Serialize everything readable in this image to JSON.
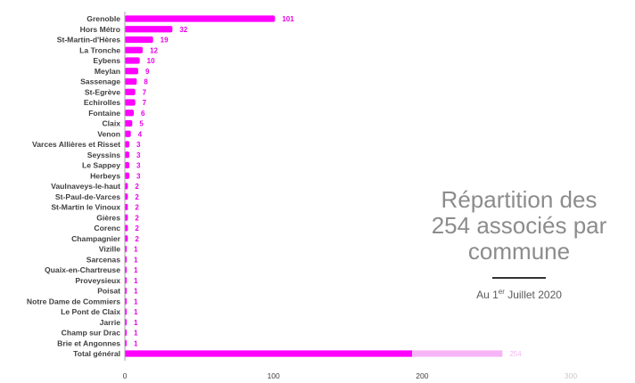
{
  "chart_data": {
    "type": "bar",
    "orientation": "horizontal",
    "categories": [
      "Grenoble",
      "Hors Métro",
      "St-Martin-d'Hères",
      "La Tronche",
      "Eybens",
      "Meylan",
      "Sassenage",
      "St-Egrève",
      "Echirolles",
      "Fontaine",
      "Claix",
      "Venon",
      "Varces Allières et Risset",
      "Seyssins",
      "Le Sappey",
      "Herbeys",
      "Vaulnaveys-le-haut",
      "St-Paul-de-Varces",
      "St-Martin le Vinoux",
      "Gières",
      "Corenc",
      "Champagnier",
      "Vizille",
      "Sarcenas",
      "Quaix-en-Chartreuse",
      "Proveysieux",
      "Poisat",
      "Notre Dame de Commiers",
      "Le Pont de Claix",
      "Jarrie",
      "Champ sur Drac",
      "Brie et Angonnes",
      "Total général"
    ],
    "values": [
      101,
      32,
      19,
      12,
      10,
      9,
      8,
      7,
      7,
      6,
      5,
      4,
      3,
      3,
      3,
      3,
      2,
      2,
      2,
      2,
      2,
      2,
      1,
      1,
      1,
      1,
      1,
      1,
      1,
      1,
      1,
      1,
      254
    ],
    "value_labels": [
      "101",
      "32",
      "19",
      "12",
      "10",
      "9",
      "8",
      "7",
      "7",
      "6",
      "5",
      "4",
      "3",
      "3",
      "3",
      "3",
      "2",
      "2",
      "2",
      "2",
      "2",
      "2",
      "1",
      "1",
      "1",
      "1",
      "1",
      "1",
      "1",
      "1",
      "1",
      "1",
      "254"
    ],
    "xlim": [
      0,
      300
    ],
    "xticks": [
      0,
      100,
      200,
      300
    ],
    "xtick_labels": [
      "0",
      "100",
      "200",
      "300"
    ],
    "grid": false,
    "bar_color": "#ff00ff",
    "bar_color_faded": "#f7b5f7",
    "label_color": "#e800e8"
  },
  "title": {
    "lines": [
      "Répartition des",
      "254 associés par",
      "commune"
    ],
    "subtitle_prefix": "Au 1",
    "subtitle_sup": "er",
    "subtitle_suffix": " Juillet 2020"
  }
}
